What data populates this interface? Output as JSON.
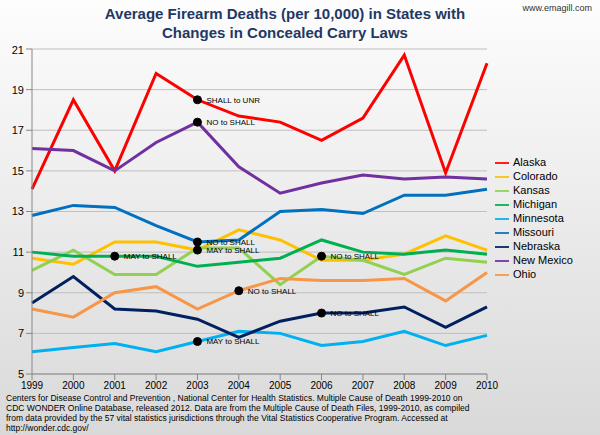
{
  "chart_data": {
    "type": "line",
    "title": "Average Firearm Deaths (per 10,000) in States with Changes in Concealed Carry Laws",
    "watermark": "www.emagill.com",
    "source": "Centers for Disease Control and Prevention , National Center for Health Statistics. Multiple Cause of Death 1999-2010 on CDC WONDER Online Database, released 2012. Data are from the Multiple Cause of Death Files, 1999-2010, as compiled from data provided by the 57 vital statistics jurisdictions through the Vital Statistics Cooperative Program. Accessed at http://wonder.cdc.gov/",
    "categories": [
      "1999",
      "2000",
      "2001",
      "2002",
      "2003",
      "2004",
      "2005",
      "2006",
      "2007",
      "2008",
      "2009",
      "2010"
    ],
    "series": [
      {
        "name": "Alaska",
        "color": "#ff0000",
        "values": [
          14.1,
          18.5,
          15.0,
          19.8,
          18.5,
          17.7,
          17.4,
          16.5,
          17.6,
          20.7,
          14.9,
          20.3
        ]
      },
      {
        "name": "Colorado",
        "color": "#ffc000",
        "values": [
          10.7,
          10.4,
          11.5,
          11.5,
          11.1,
          12.1,
          11.6,
          10.6,
          10.6,
          10.9,
          11.8,
          11.1
        ]
      },
      {
        "name": "Kansas",
        "color": "#92d050",
        "values": [
          10.1,
          11.1,
          9.9,
          9.9,
          11.2,
          11.2,
          9.4,
          10.8,
          10.6,
          9.9,
          10.7,
          10.5
        ]
      },
      {
        "name": "Michigan",
        "color": "#00b050",
        "values": [
          11.0,
          10.8,
          10.8,
          10.8,
          10.3,
          10.5,
          10.7,
          11.6,
          11.0,
          10.9,
          11.1,
          10.9
        ]
      },
      {
        "name": "Minnesota",
        "color": "#00b0f0",
        "values": [
          6.1,
          6.3,
          6.5,
          6.1,
          6.6,
          7.1,
          7.0,
          6.4,
          6.6,
          7.1,
          6.4,
          6.9
        ]
      },
      {
        "name": "Missouri",
        "color": "#0070c0",
        "values": [
          12.8,
          13.3,
          13.2,
          12.3,
          11.5,
          11.6,
          13.0,
          13.1,
          12.9,
          13.8,
          13.8,
          14.1
        ]
      },
      {
        "name": "Nebraska",
        "color": "#002060",
        "values": [
          8.5,
          9.8,
          8.2,
          8.1,
          7.7,
          6.8,
          7.6,
          8.0,
          8.0,
          8.3,
          7.3,
          8.3
        ]
      },
      {
        "name": "New Mexico",
        "color": "#7030a0",
        "values": [
          16.1,
          16.0,
          15.0,
          16.4,
          17.4,
          15.2,
          13.9,
          14.4,
          14.8,
          14.6,
          14.7,
          14.6
        ]
      },
      {
        "name": "Ohio",
        "color": "#f79646",
        "values": [
          8.2,
          7.8,
          9.0,
          9.3,
          8.2,
          9.1,
          9.7,
          9.6,
          9.6,
          9.7,
          8.6,
          10.0
        ]
      }
    ],
    "annotations": [
      {
        "x": "2003",
        "y": 18.5,
        "label": "SHALL to UNR"
      },
      {
        "x": "2003",
        "y": 17.4,
        "label": "NO to SHALL"
      },
      {
        "x": "2003",
        "y": 11.5,
        "label": "NO to SHALL"
      },
      {
        "x": "2001",
        "y": 10.8,
        "label": "MAY to SHALL"
      },
      {
        "x": "2003",
        "y": 11.1,
        "label": "MAY to SHALL"
      },
      {
        "x": "2006",
        "y": 10.8,
        "label": "NO to SHALL"
      },
      {
        "x": "2004",
        "y": 9.1,
        "label": "NO to SHALL"
      },
      {
        "x": "2006",
        "y": 8.0,
        "label": "NO to SHALL"
      },
      {
        "x": "2003",
        "y": 6.6,
        "label": "MAY to SHALL"
      }
    ],
    "ylim": [
      5,
      21
    ],
    "yticks": [
      5,
      7,
      9,
      11,
      13,
      15,
      17,
      19,
      21
    ],
    "grid": true,
    "legend": "right"
  }
}
